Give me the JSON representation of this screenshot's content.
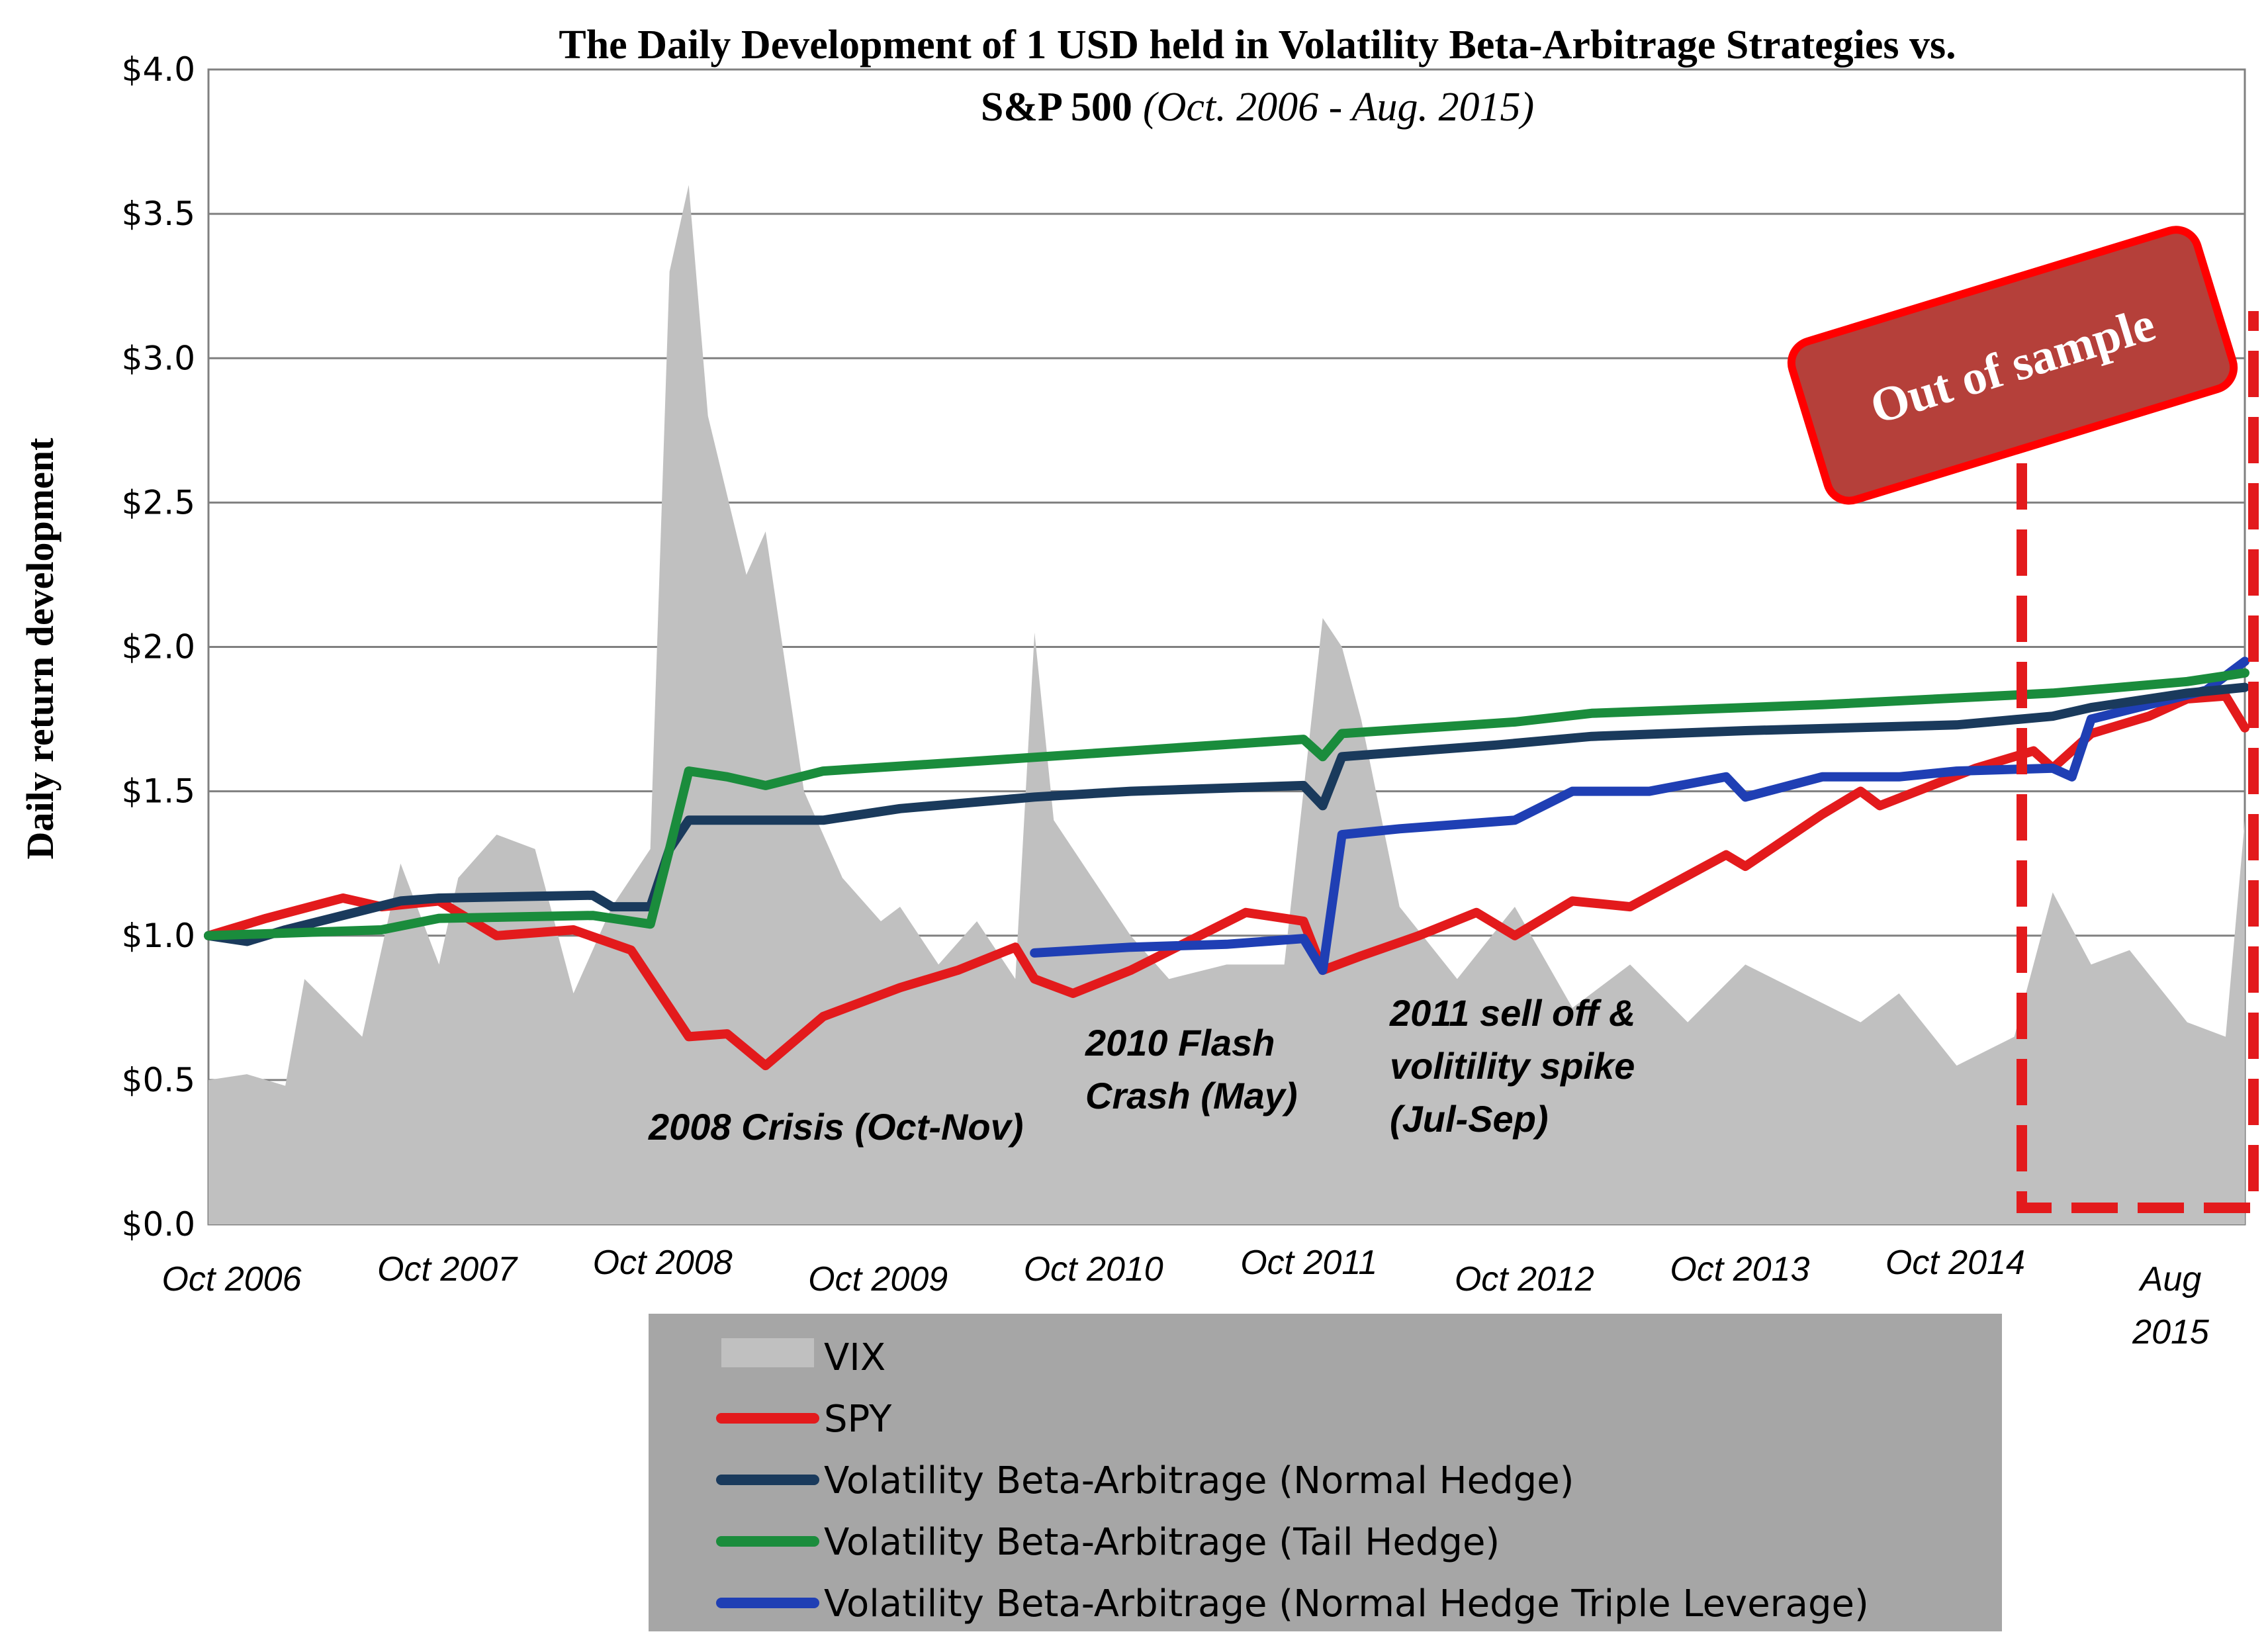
{
  "title_line1": "The Daily Development of 1 USD held in Volatility Beta-Arbitrage Strategies vs.",
  "title_line2_bold": "S&P 500",
  "title_line2_italic": "(Oct. 2006 - Aug. 2015)",
  "ylabel": "Daily return development",
  "oos_label": "Out of sample",
  "annotations": {
    "crisis_2008": "2008 Crisis (Oct-Nov)",
    "flash_crash_1": "2010 Flash",
    "flash_crash_2": "Crash (May)",
    "selloff_1": "2011 sell off &",
    "selloff_2": "volitility spike",
    "selloff_3": "(Jul-Sep)"
  },
  "colors": {
    "vix": "#c0c0c0",
    "spy": "#e31a1c",
    "normal": "#1a3a5c",
    "tail": "#1a8c3c",
    "triple": "#1f3fb4",
    "grid": "#808080",
    "oos_box": "#b5403a",
    "oos_border": "#ff0000",
    "legend_bg": "#a6a6a6"
  },
  "chart_data": {
    "type": "line",
    "title": "The Daily Development of 1 USD held in Volatility Beta-Arbitrage Strategies vs. S&P 500 (Oct. 2006 - Aug. 2015)",
    "xlabel": "",
    "ylabel": "Daily return development",
    "x_ticks": [
      "Oct 2006",
      "Oct 2007",
      "Oct 2008",
      "Oct 2009",
      "Oct 2010",
      "Oct 2011",
      "Oct 2012",
      "Oct 2013",
      "Oct 2014",
      "Aug 2015"
    ],
    "y_ticks": [
      "$0.0",
      "$0.5",
      "$1.0",
      "$1.5",
      "$2.0",
      "$2.5",
      "$3.0",
      "$3.5",
      "$4.0"
    ],
    "ylim": [
      0,
      4
    ],
    "xlim": [
      "2006-10",
      "2015-08"
    ],
    "grid": true,
    "legend_position": "bottom",
    "series": [
      {
        "name": "VIX",
        "kind": "area",
        "points": [
          [
            "2006-10",
            0.5
          ],
          [
            "2006-12",
            0.52
          ],
          [
            "2007-02",
            0.48
          ],
          [
            "2007-03",
            0.85
          ],
          [
            "2007-06",
            0.65
          ],
          [
            "2007-08",
            1.25
          ],
          [
            "2007-10",
            0.9
          ],
          [
            "2007-11",
            1.2
          ],
          [
            "2008-01",
            1.35
          ],
          [
            "2008-03",
            1.3
          ],
          [
            "2008-05",
            0.8
          ],
          [
            "2008-07",
            1.1
          ],
          [
            "2008-09",
            1.3
          ],
          [
            "2008-10",
            3.3
          ],
          [
            "2008-11",
            3.6
          ],
          [
            "2008-12",
            2.8
          ],
          [
            "2009-02",
            2.25
          ],
          [
            "2009-03",
            2.4
          ],
          [
            "2009-05",
            1.5
          ],
          [
            "2009-07",
            1.2
          ],
          [
            "2009-09",
            1.05
          ],
          [
            "2009-10",
            1.1
          ],
          [
            "2009-12",
            0.9
          ],
          [
            "2010-02",
            1.05
          ],
          [
            "2010-04",
            0.85
          ],
          [
            "2010-05",
            2.05
          ],
          [
            "2010-06",
            1.4
          ],
          [
            "2010-08",
            1.2
          ],
          [
            "2010-10",
            1.0
          ],
          [
            "2010-12",
            0.85
          ],
          [
            "2011-03",
            0.9
          ],
          [
            "2011-06",
            0.9
          ],
          [
            "2011-08",
            2.1
          ],
          [
            "2011-09",
            2.0
          ],
          [
            "2011-10",
            1.75
          ],
          [
            "2011-12",
            1.1
          ],
          [
            "2012-03",
            0.85
          ],
          [
            "2012-06",
            1.1
          ],
          [
            "2012-09",
            0.75
          ],
          [
            "2012-12",
            0.9
          ],
          [
            "2013-03",
            0.7
          ],
          [
            "2013-06",
            0.9
          ],
          [
            "2013-09",
            0.8
          ],
          [
            "2013-12",
            0.7
          ],
          [
            "2014-02",
            0.8
          ],
          [
            "2014-05",
            0.55
          ],
          [
            "2014-08",
            0.65
          ],
          [
            "2014-10",
            1.15
          ],
          [
            "2014-12",
            0.9
          ],
          [
            "2015-02",
            0.95
          ],
          [
            "2015-05",
            0.7
          ],
          [
            "2015-07",
            0.65
          ],
          [
            "2015-08",
            1.4
          ]
        ]
      },
      {
        "name": "SPY",
        "kind": "line",
        "points": [
          [
            "2006-10",
            1.0
          ],
          [
            "2007-01",
            1.06
          ],
          [
            "2007-05",
            1.13
          ],
          [
            "2007-07",
            1.1
          ],
          [
            "2007-10",
            1.12
          ],
          [
            "2008-01",
            1.0
          ],
          [
            "2008-05",
            1.02
          ],
          [
            "2008-08",
            0.95
          ],
          [
            "2008-10",
            0.75
          ],
          [
            "2008-11",
            0.65
          ],
          [
            "2009-01",
            0.66
          ],
          [
            "2009-03",
            0.55
          ],
          [
            "2009-06",
            0.72
          ],
          [
            "2009-10",
            0.82
          ],
          [
            "2010-01",
            0.88
          ],
          [
            "2010-04",
            0.96
          ],
          [
            "2010-05",
            0.85
          ],
          [
            "2010-07",
            0.8
          ],
          [
            "2010-10",
            0.88
          ],
          [
            "2011-01",
            0.98
          ],
          [
            "2011-04",
            1.08
          ],
          [
            "2011-07",
            1.05
          ],
          [
            "2011-08",
            0.88
          ],
          [
            "2011-10",
            0.93
          ],
          [
            "2012-01",
            1.0
          ],
          [
            "2012-04",
            1.08
          ],
          [
            "2012-06",
            1.0
          ],
          [
            "2012-09",
            1.12
          ],
          [
            "2012-12",
            1.1
          ],
          [
            "2013-05",
            1.28
          ],
          [
            "2013-06",
            1.24
          ],
          [
            "2013-10",
            1.42
          ],
          [
            "2013-12",
            1.5
          ],
          [
            "2014-01",
            1.45
          ],
          [
            "2014-06",
            1.58
          ],
          [
            "2014-09",
            1.64
          ],
          [
            "2014-10",
            1.58
          ],
          [
            "2014-12",
            1.7
          ],
          [
            "2015-03",
            1.76
          ],
          [
            "2015-05",
            1.82
          ],
          [
            "2015-07",
            1.83
          ],
          [
            "2015-08",
            1.72
          ]
        ]
      },
      {
        "name": "Volatility Beta-Arbitrage (Normal Hedge)",
        "kind": "line",
        "points": [
          [
            "2006-10",
            1.0
          ],
          [
            "2006-12",
            0.98
          ],
          [
            "2007-02",
            1.02
          ],
          [
            "2007-08",
            1.12
          ],
          [
            "2007-10",
            1.13
          ],
          [
            "2008-06",
            1.14
          ],
          [
            "2008-07",
            1.1
          ],
          [
            "2008-09",
            1.1
          ],
          [
            "2008-10",
            1.3
          ],
          [
            "2008-11",
            1.4
          ],
          [
            "2009-06",
            1.4
          ],
          [
            "2009-10",
            1.44
          ],
          [
            "2010-05",
            1.48
          ],
          [
            "2010-10",
            1.5
          ],
          [
            "2011-07",
            1.52
          ],
          [
            "2011-08",
            1.45
          ],
          [
            "2011-09",
            1.62
          ],
          [
            "2012-05",
            1.66
          ],
          [
            "2012-10",
            1.69
          ],
          [
            "2013-06",
            1.71
          ],
          [
            "2014-05",
            1.73
          ],
          [
            "2014-10",
            1.76
          ],
          [
            "2014-12",
            1.79
          ],
          [
            "2015-05",
            1.84
          ],
          [
            "2015-08",
            1.86
          ]
        ]
      },
      {
        "name": "Volatility Beta-Arbitrage (Tail Hedge)",
        "kind": "line",
        "points": [
          [
            "2006-10",
            1.0
          ],
          [
            "2007-07",
            1.02
          ],
          [
            "2007-10",
            1.06
          ],
          [
            "2008-06",
            1.07
          ],
          [
            "2008-09",
            1.04
          ],
          [
            "2008-10",
            1.3
          ],
          [
            "2008-11",
            1.57
          ],
          [
            "2009-01",
            1.55
          ],
          [
            "2009-03",
            1.52
          ],
          [
            "2009-06",
            1.57
          ],
          [
            "2010-01",
            1.6
          ],
          [
            "2010-10",
            1.64
          ],
          [
            "2011-07",
            1.68
          ],
          [
            "2011-08",
            1.62
          ],
          [
            "2011-09",
            1.7
          ],
          [
            "2012-06",
            1.74
          ],
          [
            "2012-10",
            1.77
          ],
          [
            "2013-10",
            1.8
          ],
          [
            "2014-10",
            1.84
          ],
          [
            "2015-05",
            1.88
          ],
          [
            "2015-08",
            1.91
          ]
        ]
      },
      {
        "name": "Volatility Beta-Arbitrage (Normal Hedge Triple Leverage)",
        "kind": "line",
        "points": [
          [
            "2010-05",
            0.94
          ],
          [
            "2010-10",
            0.96
          ],
          [
            "2011-03",
            0.97
          ],
          [
            "2011-07",
            0.99
          ],
          [
            "2011-08",
            0.88
          ],
          [
            "2011-09",
            1.35
          ],
          [
            "2011-12",
            1.37
          ],
          [
            "2012-06",
            1.4
          ],
          [
            "2012-09",
            1.5
          ],
          [
            "2013-01",
            1.5
          ],
          [
            "2013-05",
            1.55
          ],
          [
            "2013-06",
            1.48
          ],
          [
            "2013-10",
            1.55
          ],
          [
            "2014-02",
            1.55
          ],
          [
            "2014-05",
            1.57
          ],
          [
            "2014-10",
            1.58
          ],
          [
            "2014-11",
            1.55
          ],
          [
            "2014-12",
            1.75
          ],
          [
            "2015-03",
            1.8
          ],
          [
            "2015-06",
            1.85
          ],
          [
            "2015-08",
            1.95
          ]
        ]
      }
    ]
  },
  "legend": [
    {
      "label": "VIX",
      "color_key": "vix",
      "type": "patch"
    },
    {
      "label": "SPY",
      "color_key": "spy",
      "type": "line"
    },
    {
      "label": "Volatility Beta-Arbitrage (Normal Hedge)",
      "color_key": "normal",
      "type": "line"
    },
    {
      "label": "Volatility Beta-Arbitrage (Tail Hedge)",
      "color_key": "tail",
      "type": "line"
    },
    {
      "label": "Volatility Beta-Arbitrage (Normal Hedge Triple Leverage)",
      "color_key": "triple",
      "type": "line"
    }
  ]
}
